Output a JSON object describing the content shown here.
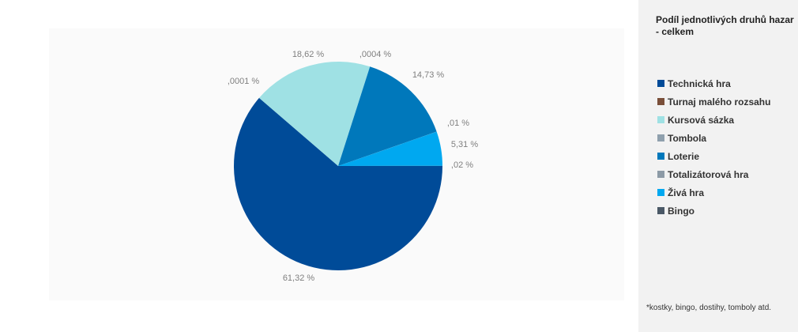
{
  "chart_data": {
    "type": "pie",
    "title": "Podíl jednotlivých druhů hazardních her - celkem",
    "slices": [
      {
        "name": "Technická hra",
        "value": 61.32,
        "label": "61,32 %",
        "color": "#004b98"
      },
      {
        "name": "Turnaj malého rozsahu",
        "value": 0.0001,
        "label": ",0001 %",
        "color": "#7a4f3a"
      },
      {
        "name": "Kursová sázka",
        "value": 18.62,
        "label": "18,62 %",
        "color": "#9fe1e4"
      },
      {
        "name": "Tombola",
        "value": 0.0004,
        "label": ",0004 %",
        "color": "#8fa0ad"
      },
      {
        "name": "Loterie",
        "value": 14.73,
        "label": "14,73 %",
        "color": "#0078bb"
      },
      {
        "name": "Totalizátorová hra",
        "value": 0.01,
        "label": ",01 %",
        "color": "#8c9aa6"
      },
      {
        "name": "Živá hra",
        "value": 5.31,
        "label": "5,31 %",
        "color": "#00a8f0"
      },
      {
        "name": "Bingo",
        "value": 0.02,
        "label": ",02 %",
        "color": "#4a5866"
      }
    ],
    "legend_position": "right"
  },
  "legend": {
    "title_line1": "Podíl jednotlivých druhů hazar",
    "title_line2": "- celkem"
  },
  "footnote": "*kostky, bingo, dostihy, tomboly atd."
}
